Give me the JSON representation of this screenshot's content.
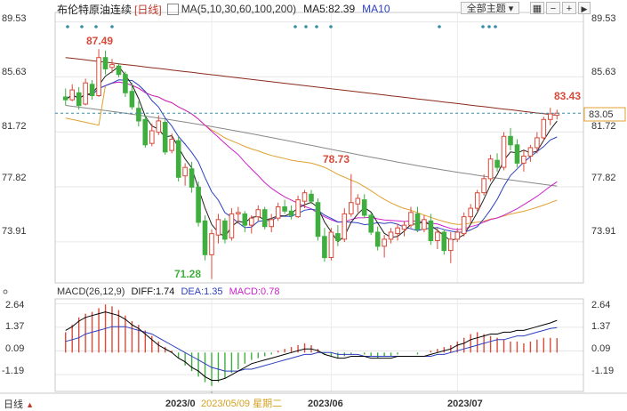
{
  "header": {
    "title": "布伦特原油连续",
    "period_tag": "[日线]",
    "ma_legend": "MA(5,10,30,60,100,200)",
    "ma5_label": "MA5:82.39",
    "ma10_label": "MA10"
  },
  "toolbar": {
    "theme_button": "全部主题",
    "icons": [
      "grid-icon",
      "minus-icon",
      "plus-icon",
      "play-icon"
    ]
  },
  "price_axis": {
    "ticks": [
      "89.53",
      "85.63",
      "81.72",
      "77.82",
      "73.91"
    ],
    "current_price": "83.05",
    "range": [
      71.0,
      90.2
    ]
  },
  "annotations": {
    "high_label": "87.49",
    "mid_label": "78.73",
    "low_label": "71.28",
    "recent_label": "83.43"
  },
  "macd": {
    "title": "MACD(26,12,9)",
    "diff_label": "DIFF:1.74",
    "dea_label": "DEA:1.35",
    "macd_label": "MACD:0.78",
    "ticks": [
      "2.64",
      "1.37",
      "0.09",
      "-1.19"
    ],
    "range": [
      -2.1,
      2.9
    ]
  },
  "x_axis": {
    "labels": [
      "2023/0",
      "2023/05/09 星期二",
      "2023/06",
      "2023/07"
    ]
  },
  "footer": {
    "period": "日线",
    "arrow": "▲"
  },
  "colors": {
    "up": "#d94a3a",
    "down": "#3fae3f",
    "ma5": "#1f1f1f",
    "ma10": "#2b3fbf",
    "ma30": "#cc22cc",
    "ma60": "#e0a030",
    "ma100": "#888888",
    "ma200": "#8b2a1a",
    "diff": "#000000",
    "dea": "#2b3fbf",
    "ref_line": "#3a8fa8"
  },
  "chart_data": [
    {
      "type": "candlestick",
      "title": "布伦特原油连续 [日线]",
      "ylim": [
        71.0,
        90.2
      ],
      "candles": [
        [
          84.2,
          84.8,
          83.6,
          84.0
        ],
        [
          84.0,
          85.1,
          83.9,
          84.7
        ],
        [
          84.5,
          84.9,
          83.3,
          83.6
        ],
        [
          83.7,
          85.5,
          83.6,
          85.2
        ],
        [
          85.1,
          85.4,
          84.0,
          84.3
        ],
        [
          84.3,
          87.6,
          84.2,
          87.0
        ],
        [
          87.0,
          87.49,
          85.8,
          86.2
        ],
        [
          86.3,
          86.9,
          85.9,
          86.5
        ],
        [
          86.4,
          86.6,
          85.6,
          85.8
        ],
        [
          85.8,
          86.0,
          84.2,
          84.5
        ],
        [
          84.6,
          85.2,
          83.3,
          83.5
        ],
        [
          83.4,
          83.9,
          82.1,
          82.5
        ],
        [
          82.6,
          82.9,
          80.6,
          80.8
        ],
        [
          80.9,
          82.3,
          80.7,
          81.8
        ],
        [
          81.7,
          82.9,
          81.5,
          82.5
        ],
        [
          82.4,
          82.6,
          80.1,
          80.3
        ],
        [
          80.4,
          81.6,
          80.2,
          81.2
        ],
        [
          81.1,
          81.4,
          78.2,
          78.5
        ],
        [
          78.6,
          79.5,
          77.9,
          79.2
        ],
        [
          79.1,
          79.6,
          77.4,
          77.8
        ],
        [
          77.8,
          78.2,
          75.0,
          75.3
        ],
        [
          75.4,
          75.8,
          72.6,
          73.0
        ],
        [
          73.0,
          74.8,
          71.28,
          74.5
        ],
        [
          74.4,
          75.9,
          73.8,
          75.5
        ],
        [
          75.4,
          75.6,
          73.8,
          74.1
        ],
        [
          74.2,
          76.3,
          74.0,
          75.9
        ],
        [
          75.9,
          76.4,
          75.2,
          76.0
        ],
        [
          75.9,
          76.1,
          74.6,
          75.1
        ],
        [
          75.1,
          75.8,
          74.5,
          75.6
        ],
        [
          75.7,
          76.5,
          75.4,
          76.2
        ],
        [
          76.2,
          76.4,
          74.8,
          75.0
        ],
        [
          75.0,
          75.9,
          74.6,
          75.5
        ],
        [
          75.6,
          76.7,
          75.4,
          76.4
        ],
        [
          76.4,
          76.9,
          75.9,
          76.1
        ],
        [
          76.1,
          76.5,
          75.5,
          75.8
        ],
        [
          75.7,
          77.2,
          75.6,
          76.9
        ],
        [
          76.8,
          77.6,
          76.3,
          77.4
        ],
        [
          77.3,
          77.6,
          76.6,
          76.8
        ],
        [
          76.7,
          77.0,
          74.0,
          74.3
        ],
        [
          74.3,
          74.9,
          72.5,
          72.8
        ],
        [
          72.8,
          74.9,
          72.6,
          74.6
        ],
        [
          74.5,
          75.1,
          73.6,
          74.0
        ],
        [
          74.1,
          76.3,
          73.9,
          75.9
        ],
        [
          75.9,
          78.73,
          75.7,
          76.7
        ],
        [
          76.6,
          77.3,
          76.0,
          77.0
        ],
        [
          76.9,
          77.3,
          75.6,
          75.8
        ],
        [
          75.8,
          76.0,
          74.4,
          74.6
        ],
        [
          74.6,
          75.0,
          73.3,
          73.6
        ],
        [
          73.6,
          74.4,
          72.8,
          74.1
        ],
        [
          74.1,
          74.9,
          73.8,
          74.6
        ],
        [
          74.5,
          75.2,
          74.0,
          74.9
        ],
        [
          74.8,
          75.4,
          74.3,
          75.1
        ],
        [
          75.1,
          76.4,
          74.9,
          76.0
        ],
        [
          75.9,
          76.4,
          74.6,
          74.8
        ],
        [
          74.8,
          75.8,
          74.6,
          75.5
        ],
        [
          75.4,
          75.9,
          73.7,
          74.0
        ],
        [
          74.0,
          74.9,
          73.4,
          74.6
        ],
        [
          74.6,
          74.8,
          73.0,
          73.3
        ],
        [
          73.3,
          74.6,
          72.4,
          74.1
        ],
        [
          74.1,
          74.9,
          73.9,
          74.6
        ],
        [
          74.5,
          76.0,
          74.3,
          75.7
        ],
        [
          75.7,
          76.6,
          75.3,
          76.3
        ],
        [
          76.3,
          77.6,
          76.1,
          77.4
        ],
        [
          77.4,
          78.7,
          77.2,
          78.4
        ],
        [
          78.4,
          80.1,
          78.2,
          79.8
        ],
        [
          79.7,
          80.2,
          78.9,
          79.2
        ],
        [
          79.2,
          81.7,
          79.0,
          81.4
        ],
        [
          81.4,
          82.0,
          80.4,
          80.8
        ],
        [
          80.8,
          81.2,
          79.2,
          79.5
        ],
        [
          79.5,
          80.4,
          78.9,
          80.0
        ],
        [
          80.0,
          80.8,
          79.6,
          80.6
        ],
        [
          80.6,
          81.7,
          80.2,
          81.3
        ],
        [
          81.3,
          82.8,
          81.1,
          82.6
        ],
        [
          82.6,
          83.43,
          82.2,
          83.0
        ],
        [
          82.9,
          83.3,
          82.6,
          83.05
        ]
      ]
    },
    {
      "type": "bar",
      "title": "MACD(26,12,9)",
      "ylim": [
        -2.1,
        2.9
      ],
      "values": [
        1.1,
        1.5,
        1.9,
        2.1,
        2.2,
        2.4,
        2.6,
        2.5,
        2.3,
        2.0,
        1.7,
        1.5,
        1.2,
        0.9,
        0.6,
        0.3,
        0.1,
        -0.3,
        -0.7,
        -1.0,
        -1.3,
        -1.6,
        -1.8,
        -1.6,
        -1.4,
        -1.1,
        -0.9,
        -0.6,
        -0.4,
        -0.3,
        -0.2,
        -0.1,
        0.1,
        0.2,
        0.3,
        0.4,
        0.5,
        0.4,
        0.2,
        -0.1,
        -0.2,
        -0.3,
        -0.2,
        -0.1,
        0.0,
        -0.1,
        -0.2,
        -0.3,
        -0.2,
        -0.2,
        -0.1,
        0.0,
        0.0,
        -0.1,
        0.0,
        0.1,
        0.2,
        0.3,
        0.4,
        0.6,
        0.8,
        1.0,
        1.1,
        1.0,
        0.9,
        0.8,
        0.7,
        0.6,
        0.6,
        0.5,
        0.6,
        0.7,
        0.8,
        0.8,
        0.78
      ],
      "series": [
        {
          "name": "DIFF",
          "values": [
            1.2,
            1.4,
            1.7,
            1.9,
            2.0,
            2.1,
            2.2,
            2.1,
            2.0,
            1.8,
            1.5,
            1.3,
            1.0,
            0.7,
            0.4,
            0.2,
            0.0,
            -0.3,
            -0.5,
            -0.8,
            -1.0,
            -1.3,
            -1.5,
            -1.5,
            -1.4,
            -1.2,
            -1.0,
            -0.8,
            -0.6,
            -0.5,
            -0.4,
            -0.3,
            -0.2,
            -0.1,
            0.0,
            0.1,
            0.2,
            0.2,
            0.1,
            -0.1,
            -0.2,
            -0.3,
            -0.3,
            -0.2,
            -0.2,
            -0.2,
            -0.3,
            -0.3,
            -0.3,
            -0.3,
            -0.2,
            -0.2,
            -0.2,
            -0.2,
            -0.2,
            -0.1,
            0.0,
            0.1,
            0.2,
            0.4,
            0.5,
            0.7,
            0.8,
            0.9,
            1.0,
            1.0,
            1.1,
            1.1,
            1.2,
            1.2,
            1.3,
            1.4,
            1.5,
            1.6,
            1.74
          ]
        },
        {
          "name": "DEA",
          "values": [
            0.6,
            0.7,
            0.8,
            1.0,
            1.1,
            1.2,
            1.3,
            1.4,
            1.4,
            1.4,
            1.3,
            1.2,
            1.1,
            1.0,
            0.8,
            0.6,
            0.4,
            0.2,
            0.0,
            -0.2,
            -0.4,
            -0.6,
            -0.8,
            -0.9,
            -1.0,
            -1.0,
            -1.0,
            -0.9,
            -0.9,
            -0.8,
            -0.7,
            -0.6,
            -0.5,
            -0.4,
            -0.3,
            -0.2,
            -0.1,
            -0.1,
            0.0,
            0.0,
            0.0,
            -0.1,
            -0.1,
            -0.1,
            -0.1,
            -0.2,
            -0.2,
            -0.2,
            -0.2,
            -0.2,
            -0.2,
            -0.2,
            -0.2,
            -0.2,
            -0.2,
            -0.2,
            -0.1,
            -0.1,
            0.0,
            0.1,
            0.2,
            0.3,
            0.4,
            0.5,
            0.6,
            0.7,
            0.7,
            0.8,
            0.9,
            0.9,
            1.0,
            1.1,
            1.2,
            1.3,
            1.35
          ]
        }
      ]
    }
  ]
}
